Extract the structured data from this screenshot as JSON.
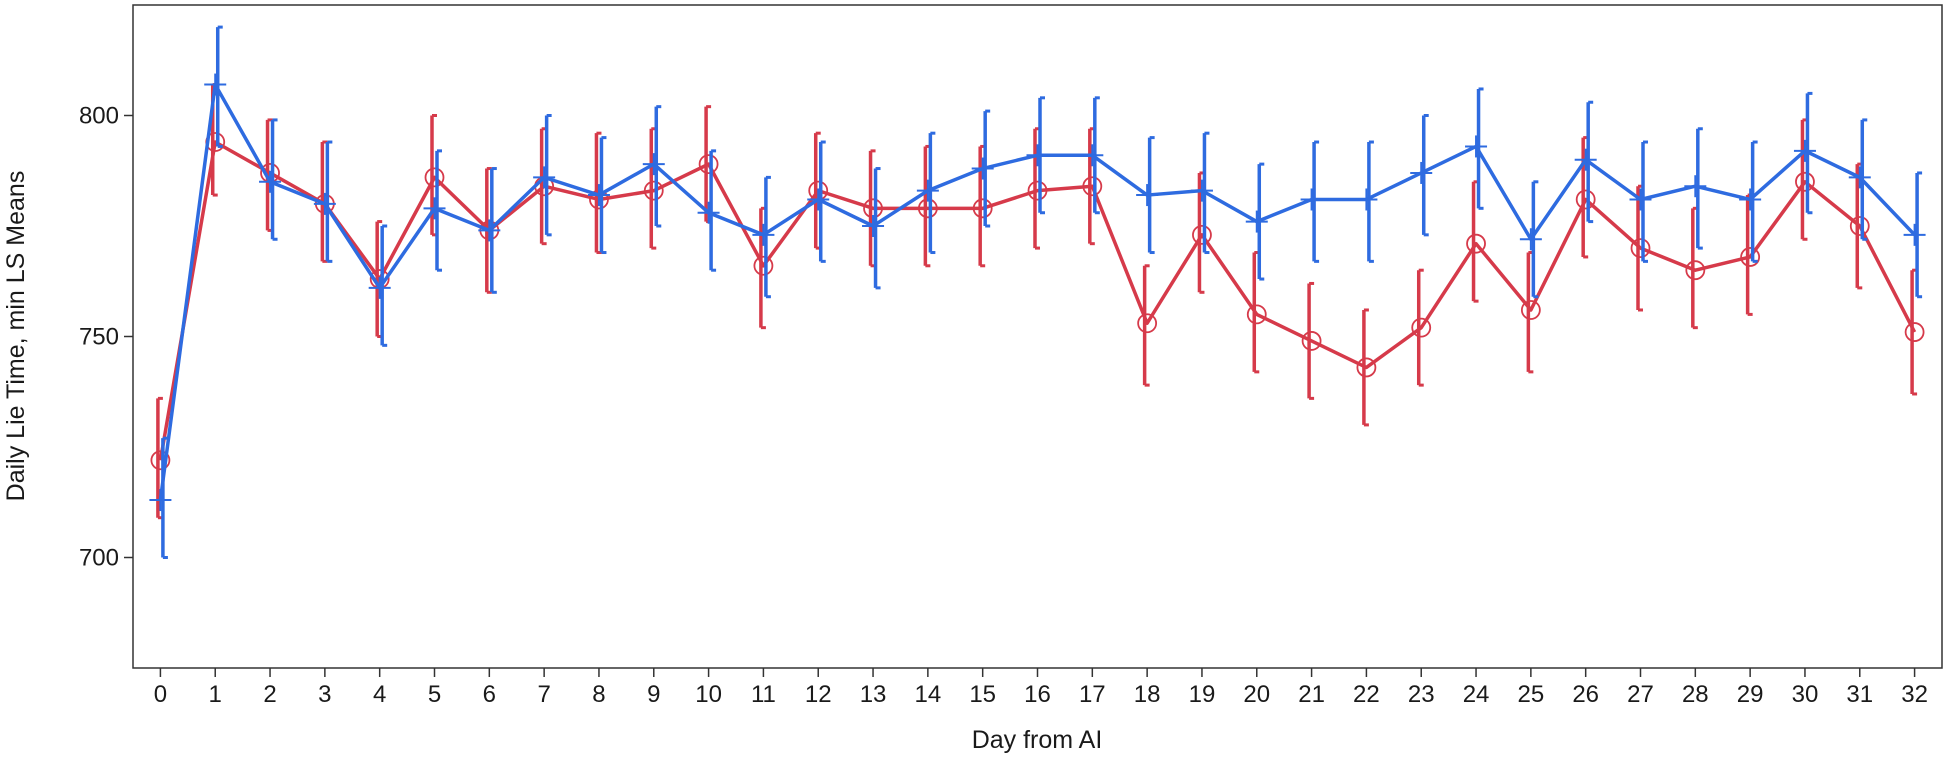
{
  "chart_data": {
    "type": "line",
    "title": "",
    "xlabel": "Day from AI",
    "ylabel": "Daily Lie Time, min LS Means",
    "xlim": [
      -0.5,
      32.5
    ],
    "ylim": [
      675,
      825
    ],
    "x_ticks": [
      0,
      1,
      2,
      3,
      4,
      5,
      6,
      7,
      8,
      9,
      10,
      11,
      12,
      13,
      14,
      15,
      16,
      17,
      18,
      19,
      20,
      21,
      22,
      23,
      24,
      25,
      26,
      27,
      28,
      29,
      30,
      31,
      32
    ],
    "y_ticks": [
      700,
      750,
      800
    ],
    "grid": false,
    "legend": "none",
    "x": [
      0,
      1,
      2,
      3,
      4,
      5,
      6,
      7,
      8,
      9,
      10,
      11,
      12,
      13,
      14,
      15,
      16,
      17,
      18,
      19,
      20,
      21,
      22,
      23,
      24,
      25,
      26,
      27,
      28,
      29,
      30,
      31,
      32
    ],
    "series": [
      {
        "color": "#d63a4a",
        "marker": "circle",
        "values": [
          722,
          794,
          787,
          780,
          763,
          786,
          774,
          784,
          781,
          783,
          789,
          766,
          783,
          779,
          779,
          779,
          783,
          784,
          753,
          773,
          755,
          749,
          743,
          752,
          771,
          756,
          781,
          770,
          765,
          768,
          785,
          775,
          751
        ],
        "lower": [
          709,
          782,
          774,
          767,
          750,
          773,
          760,
          771,
          769,
          770,
          776,
          752,
          770,
          766,
          766,
          766,
          770,
          771,
          739,
          760,
          742,
          736,
          730,
          739,
          758,
          742,
          768,
          756,
          752,
          755,
          772,
          761,
          737
        ],
        "upper": [
          736,
          807,
          799,
          794,
          776,
          800,
          788,
          797,
          796,
          797,
          802,
          779,
          796,
          792,
          793,
          793,
          797,
          797,
          766,
          787,
          769,
          762,
          756,
          765,
          785,
          769,
          795,
          784,
          779,
          782,
          799,
          789,
          765
        ]
      },
      {
        "color": "#2e6be0",
        "marker": "plus",
        "values": [
          713,
          807,
          785,
          780,
          761,
          779,
          774,
          786,
          782,
          789,
          778,
          773,
          781,
          775,
          783,
          788,
          791,
          791,
          782,
          783,
          776,
          781,
          781,
          787,
          793,
          772,
          790,
          781,
          784,
          781,
          792,
          786,
          773
        ],
        "lower": [
          700,
          793,
          772,
          767,
          748,
          765,
          760,
          773,
          769,
          775,
          765,
          759,
          767,
          761,
          769,
          775,
          778,
          778,
          769,
          769,
          763,
          767,
          767,
          773,
          779,
          759,
          776,
          767,
          770,
          767,
          778,
          772,
          759
        ],
        "upper": [
          727,
          820,
          799,
          794,
          775,
          792,
          788,
          800,
          795,
          802,
          792,
          786,
          794,
          788,
          796,
          801,
          804,
          804,
          795,
          796,
          789,
          794,
          794,
          800,
          806,
          785,
          803,
          794,
          797,
          794,
          805,
          799,
          787
        ]
      }
    ]
  }
}
